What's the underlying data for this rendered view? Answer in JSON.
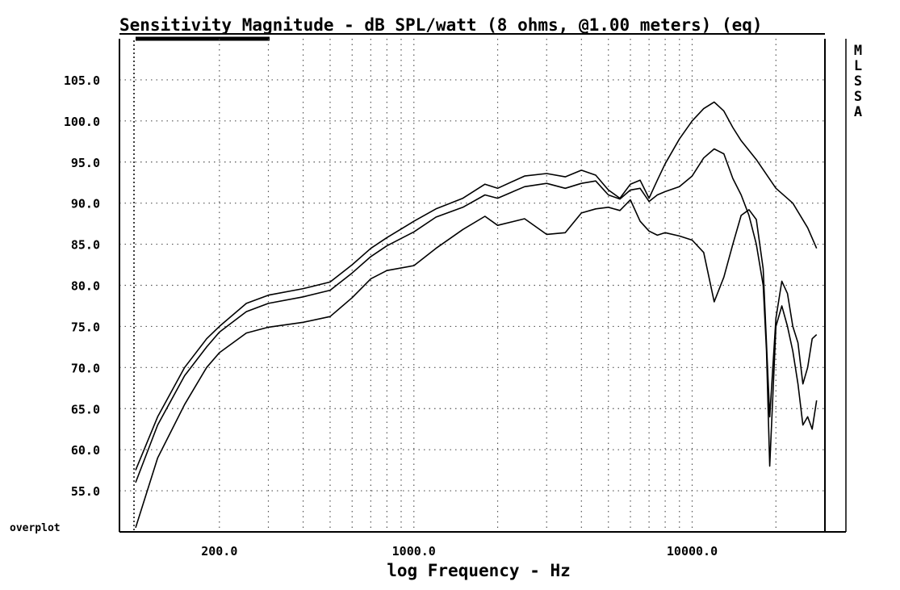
{
  "chart_data": {
    "type": "line",
    "title": "Sensitivity Magnitude - dB SPL/watt (8 ohms, @1.00 meters) (eq)",
    "xlabel": "log Frequency - Hz",
    "ylabel": "",
    "x_scale": "log",
    "xlim": [
      100,
      30000
    ],
    "ylim": [
      50,
      110
    ],
    "x_ticks": [
      {
        "value": 200,
        "label": "200.0"
      },
      {
        "value": 1000,
        "label": "1000.0"
      },
      {
        "value": 10000,
        "label": "10000.0"
      }
    ],
    "y_ticks": [
      {
        "value": 55,
        "label": "55.0"
      },
      {
        "value": 60,
        "label": "60.0"
      },
      {
        "value": 65,
        "label": "65.0"
      },
      {
        "value": 70,
        "label": "70.0"
      },
      {
        "value": 75,
        "label": "75.0"
      },
      {
        "value": 80,
        "label": "80.0"
      },
      {
        "value": 85,
        "label": "85.0"
      },
      {
        "value": 90,
        "label": "90.0"
      },
      {
        "value": 95,
        "label": "95.0"
      },
      {
        "value": 100,
        "label": "100.0"
      },
      {
        "value": 105,
        "label": "105.0"
      }
    ],
    "grid": true,
    "overplot_label": "overplot",
    "side_label": "MLSSA",
    "series": [
      {
        "x": [
          100,
          120,
          150,
          180,
          200,
          250,
          300,
          400,
          500,
          600,
          700,
          800,
          1000,
          1200,
          1500,
          1800,
          2000,
          2500,
          3000,
          3500,
          4000,
          4500,
          5000,
          5500,
          6000,
          6500,
          7000,
          7500,
          8000,
          9000,
          10000,
          11000,
          12000,
          13000,
          14000,
          15000,
          17000,
          20000,
          23000,
          26000,
          28000
        ],
        "y": [
          57.5,
          64,
          70,
          73.5,
          75,
          77.8,
          78.8,
          79.6,
          80.4,
          82.5,
          84.5,
          85.8,
          87.8,
          89.3,
          90.6,
          92.3,
          91.8,
          93.3,
          93.6,
          93.2,
          94.0,
          93.4,
          91.6,
          90.6,
          92.3,
          92.8,
          90.6,
          92.8,
          94.8,
          97.8,
          100.0,
          101.5,
          102.3,
          101.2,
          99.2,
          97.6,
          95.3,
          91.8,
          90.0,
          87.0,
          84.5
        ]
      },
      {
        "x": [
          100,
          120,
          150,
          180,
          200,
          250,
          300,
          400,
          500,
          600,
          700,
          800,
          1000,
          1200,
          1500,
          1800,
          2000,
          2500,
          3000,
          3500,
          4000,
          4500,
          5000,
          5500,
          6000,
          6500,
          7000,
          7500,
          8000,
          9000,
          10000,
          11000,
          12000,
          13000,
          14000,
          15000,
          16000,
          17000,
          18000,
          18500,
          19000,
          20000,
          21000,
          22000,
          23000,
          24000,
          25000,
          26000,
          27000,
          28000
        ],
        "y": [
          56,
          63,
          69,
          72.5,
          74.3,
          76.8,
          77.8,
          78.6,
          79.4,
          81.5,
          83.5,
          84.8,
          86.5,
          88.3,
          89.5,
          91.0,
          90.6,
          92.0,
          92.4,
          91.8,
          92.4,
          92.7,
          91.0,
          90.5,
          91.6,
          91.8,
          90.2,
          91.0,
          91.4,
          92.0,
          93.3,
          95.5,
          96.6,
          96.0,
          93.0,
          91.0,
          88.5,
          85.0,
          80.0,
          72.0,
          58.0,
          75.0,
          77.5,
          75.0,
          72.0,
          68.0,
          63.0,
          64.0,
          62.5,
          66.0
        ]
      },
      {
        "x": [
          100,
          120,
          150,
          180,
          200,
          250,
          300,
          400,
          500,
          600,
          700,
          800,
          1000,
          1200,
          1500,
          1800,
          2000,
          2500,
          3000,
          3500,
          4000,
          4500,
          5000,
          5500,
          6000,
          6500,
          7000,
          7500,
          8000,
          9000,
          10000,
          11000,
          12000,
          13000,
          14000,
          15000,
          16000,
          17000,
          18000,
          19000,
          20000,
          21000,
          22000,
          23000,
          24000,
          25000,
          26000,
          27000,
          28000
        ],
        "y": [
          50.5,
          59,
          65.5,
          70,
          71.8,
          74.2,
          74.9,
          75.5,
          76.2,
          78.5,
          80.8,
          81.8,
          82.4,
          84.5,
          86.8,
          88.4,
          87.3,
          88.1,
          86.2,
          86.4,
          88.8,
          89.3,
          89.5,
          89.1,
          90.4,
          87.8,
          86.6,
          86.1,
          86.4,
          86.0,
          85.5,
          84.0,
          78.0,
          81.0,
          85.0,
          88.5,
          89.2,
          88.0,
          82.0,
          64.0,
          76.0,
          80.5,
          79.0,
          75.0,
          73.0,
          68.0,
          70.0,
          73.5,
          74.0
        ]
      }
    ]
  }
}
